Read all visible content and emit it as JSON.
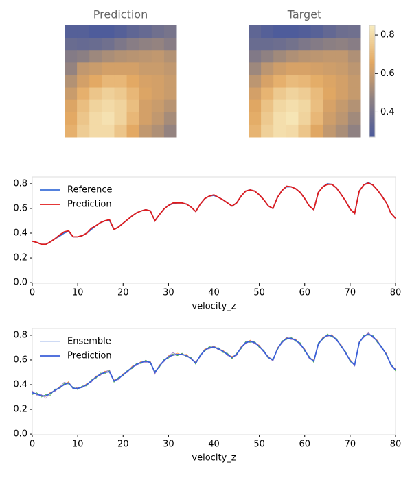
{
  "chart_data": [
    {
      "type": "heatmap",
      "title": "Prediction",
      "clim": [
        0.27,
        0.85
      ],
      "colormap": [
        "#4b5a9c",
        "#8c8083",
        "#e3a862",
        "#f8ecbf"
      ],
      "values": [
        [
          0.3,
          0.3,
          0.28,
          0.28,
          0.3,
          0.33,
          0.35,
          0.38,
          0.4
        ],
        [
          0.36,
          0.35,
          0.36,
          0.38,
          0.42,
          0.45,
          0.47,
          0.48,
          0.45
        ],
        [
          0.44,
          0.46,
          0.5,
          0.53,
          0.55,
          0.56,
          0.57,
          0.58,
          0.55
        ],
        [
          0.48,
          0.58,
          0.6,
          0.62,
          0.62,
          0.62,
          0.6,
          0.6,
          0.58
        ],
        [
          0.55,
          0.62,
          0.66,
          0.7,
          0.7,
          0.66,
          0.63,
          0.62,
          0.6
        ],
        [
          0.6,
          0.68,
          0.74,
          0.77,
          0.75,
          0.7,
          0.64,
          0.62,
          0.6
        ],
        [
          0.64,
          0.72,
          0.78,
          0.8,
          0.78,
          0.72,
          0.62,
          0.6,
          0.56
        ],
        [
          0.66,
          0.74,
          0.8,
          0.82,
          0.78,
          0.7,
          0.62,
          0.58,
          0.52
        ],
        [
          0.68,
          0.76,
          0.8,
          0.8,
          0.74,
          0.66,
          0.58,
          0.54,
          0.48
        ]
      ]
    },
    {
      "type": "heatmap",
      "title": "Target",
      "clim": [
        0.27,
        0.85
      ],
      "colormap": [
        "#4b5a9c",
        "#8c8083",
        "#e3a862",
        "#f8ecbf"
      ],
      "colorbar_ticks": [
        0.4,
        0.6,
        0.8
      ],
      "values": [
        [
          0.33,
          0.3,
          0.28,
          0.28,
          0.29,
          0.31,
          0.34,
          0.37,
          0.38
        ],
        [
          0.36,
          0.36,
          0.37,
          0.39,
          0.42,
          0.44,
          0.46,
          0.47,
          0.45
        ],
        [
          0.43,
          0.47,
          0.51,
          0.54,
          0.56,
          0.57,
          0.58,
          0.58,
          0.54
        ],
        [
          0.5,
          0.57,
          0.61,
          0.63,
          0.63,
          0.62,
          0.61,
          0.6,
          0.57
        ],
        [
          0.57,
          0.63,
          0.68,
          0.71,
          0.7,
          0.67,
          0.64,
          0.62,
          0.59
        ],
        [
          0.62,
          0.69,
          0.75,
          0.78,
          0.76,
          0.71,
          0.65,
          0.62,
          0.59
        ],
        [
          0.65,
          0.73,
          0.79,
          0.81,
          0.79,
          0.72,
          0.63,
          0.59,
          0.55
        ],
        [
          0.67,
          0.75,
          0.81,
          0.83,
          0.78,
          0.7,
          0.61,
          0.57,
          0.51
        ],
        [
          0.69,
          0.77,
          0.81,
          0.8,
          0.74,
          0.65,
          0.58,
          0.53,
          0.47
        ]
      ]
    },
    {
      "type": "line",
      "xlim": [
        0,
        80
      ],
      "ylim": [
        -0.005,
        0.855
      ],
      "xticks": [
        0,
        10,
        20,
        30,
        40,
        50,
        60,
        70,
        80
      ],
      "yticks": [
        {
          "value": 0,
          "label": "0.0"
        },
        0.2,
        0.4,
        0.6,
        0.8
      ],
      "legend": "upper left",
      "x": [
        0,
        1,
        2,
        3,
        4,
        5,
        6,
        7,
        8,
        9,
        10,
        11,
        12,
        13,
        14,
        15,
        16,
        17,
        18,
        19,
        20,
        21,
        22,
        23,
        24,
        25,
        26,
        27,
        28,
        29,
        30,
        31,
        32,
        33,
        34,
        35,
        36,
        37,
        38,
        39,
        40,
        41,
        42,
        43,
        44,
        45,
        46,
        47,
        48,
        49,
        50,
        51,
        52,
        53,
        54,
        55,
        56,
        57,
        58,
        59,
        60,
        61,
        62,
        63,
        64,
        65,
        66,
        67,
        68,
        69,
        70,
        71,
        72,
        73,
        74,
        75,
        76,
        77,
        78,
        79,
        80
      ],
      "series": [
        {
          "name": "Reference",
          "color": "#3b6fd8",
          "values": [
            0.335,
            0.325,
            0.31,
            0.31,
            0.33,
            0.355,
            0.375,
            0.4,
            0.415,
            0.37,
            0.37,
            0.38,
            0.4,
            0.43,
            0.46,
            0.485,
            0.5,
            0.505,
            0.43,
            0.45,
            0.48,
            0.51,
            0.54,
            0.565,
            0.58,
            0.59,
            0.58,
            0.5,
            0.55,
            0.595,
            0.625,
            0.64,
            0.645,
            0.645,
            0.635,
            0.61,
            0.575,
            0.635,
            0.68,
            0.7,
            0.705,
            0.69,
            0.67,
            0.645,
            0.62,
            0.645,
            0.7,
            0.74,
            0.75,
            0.74,
            0.71,
            0.67,
            0.62,
            0.6,
            0.69,
            0.745,
            0.775,
            0.775,
            0.76,
            0.73,
            0.68,
            0.62,
            0.59,
            0.73,
            0.775,
            0.8,
            0.795,
            0.765,
            0.715,
            0.66,
            0.595,
            0.56,
            0.74,
            0.79,
            0.81,
            0.79,
            0.75,
            0.7,
            0.645,
            0.56,
            0.52
          ]
        },
        {
          "name": "Prediction",
          "color": "#e01b1b",
          "values": [
            0.335,
            0.325,
            0.31,
            0.31,
            0.33,
            0.355,
            0.385,
            0.41,
            0.42,
            0.37,
            0.37,
            0.38,
            0.4,
            0.44,
            0.46,
            0.485,
            0.5,
            0.51,
            0.43,
            0.45,
            0.48,
            0.51,
            0.54,
            0.565,
            0.58,
            0.59,
            0.58,
            0.5,
            0.55,
            0.595,
            0.625,
            0.645,
            0.645,
            0.645,
            0.635,
            0.61,
            0.575,
            0.635,
            0.68,
            0.7,
            0.71,
            0.69,
            0.67,
            0.645,
            0.62,
            0.645,
            0.7,
            0.74,
            0.75,
            0.74,
            0.71,
            0.67,
            0.62,
            0.6,
            0.69,
            0.745,
            0.78,
            0.775,
            0.76,
            0.73,
            0.68,
            0.62,
            0.59,
            0.73,
            0.775,
            0.795,
            0.795,
            0.765,
            0.715,
            0.66,
            0.595,
            0.56,
            0.74,
            0.79,
            0.805,
            0.79,
            0.75,
            0.7,
            0.645,
            0.56,
            0.52
          ]
        }
      ],
      "xlabel": "velocity_z"
    },
    {
      "type": "line",
      "xlim": [
        0,
        80
      ],
      "ylim": [
        -0.005,
        0.855
      ],
      "xticks": [
        0,
        10,
        20,
        30,
        40,
        50,
        60,
        70,
        80
      ],
      "yticks": [
        {
          "value": 0,
          "label": "0.0"
        },
        0.2,
        0.4,
        0.6,
        0.8
      ],
      "legend": "upper left",
      "x": [
        0,
        1,
        2,
        3,
        4,
        5,
        6,
        7,
        8,
        9,
        10,
        11,
        12,
        13,
        14,
        15,
        16,
        17,
        18,
        19,
        20,
        21,
        22,
        23,
        24,
        25,
        26,
        27,
        28,
        29,
        30,
        31,
        32,
        33,
        34,
        35,
        36,
        37,
        38,
        39,
        40,
        41,
        42,
        43,
        44,
        45,
        46,
        47,
        48,
        49,
        50,
        51,
        52,
        53,
        54,
        55,
        56,
        57,
        58,
        59,
        60,
        61,
        62,
        63,
        64,
        65,
        66,
        67,
        68,
        69,
        70,
        71,
        72,
        73,
        74,
        75,
        76,
        77,
        78,
        79,
        80
      ],
      "series": [
        {
          "name": "Ensemble",
          "color": "#7b9be0",
          "member_colors": [
            "#ff7f0e",
            "#2ca02c",
            "#9467bd"
          ],
          "members": [
            [
              0.345,
              0.32,
              0.315,
              0.305,
              0.34,
              0.35,
              0.385,
              0.395,
              0.425,
              0.365,
              0.38,
              0.375,
              0.41,
              0.425,
              0.47,
              0.48,
              0.51,
              0.5,
              0.44,
              0.445,
              0.49,
              0.505,
              0.55,
              0.56,
              0.59,
              0.585,
              0.59,
              0.495,
              0.56,
              0.59,
              0.635,
              0.635,
              0.655,
              0.64,
              0.645,
              0.605,
              0.585,
              0.63,
              0.69,
              0.695,
              0.715,
              0.685,
              0.68,
              0.64,
              0.63,
              0.64,
              0.71,
              0.735,
              0.76,
              0.735,
              0.72,
              0.665,
              0.63,
              0.595,
              0.7,
              0.74,
              0.785,
              0.77,
              0.77,
              0.725,
              0.69,
              0.615,
              0.6,
              0.725,
              0.785,
              0.795,
              0.805,
              0.76,
              0.725,
              0.655,
              0.605,
              0.555,
              0.75,
              0.785,
              0.82,
              0.785,
              0.76,
              0.695,
              0.655,
              0.555,
              0.53
            ],
            [
              0.32,
              0.335,
              0.3,
              0.32,
              0.315,
              0.365,
              0.365,
              0.41,
              0.405,
              0.38,
              0.36,
              0.39,
              0.39,
              0.44,
              0.45,
              0.495,
              0.49,
              0.515,
              0.42,
              0.46,
              0.47,
              0.52,
              0.53,
              0.575,
              0.57,
              0.6,
              0.57,
              0.51,
              0.54,
              0.605,
              0.615,
              0.65,
              0.635,
              0.655,
              0.625,
              0.62,
              0.565,
              0.645,
              0.67,
              0.71,
              0.695,
              0.7,
              0.66,
              0.655,
              0.61,
              0.655,
              0.69,
              0.75,
              0.74,
              0.75,
              0.7,
              0.68,
              0.61,
              0.61,
              0.68,
              0.755,
              0.765,
              0.785,
              0.75,
              0.74,
              0.67,
              0.63,
              0.58,
              0.74,
              0.765,
              0.81,
              0.785,
              0.775,
              0.705,
              0.67,
              0.585,
              0.57,
              0.73,
              0.8,
              0.8,
              0.8,
              0.74,
              0.71,
              0.635,
              0.57,
              0.51
            ],
            [
              0.35,
              0.315,
              0.32,
              0.29,
              0.335,
              0.345,
              0.38,
              0.42,
              0.41,
              0.375,
              0.365,
              0.385,
              0.405,
              0.42,
              0.465,
              0.475,
              0.505,
              0.52,
              0.435,
              0.44,
              0.485,
              0.5,
              0.545,
              0.555,
              0.585,
              0.58,
              0.585,
              0.485,
              0.555,
              0.585,
              0.63,
              0.66,
              0.64,
              0.65,
              0.63,
              0.615,
              0.58,
              0.625,
              0.685,
              0.69,
              0.71,
              0.68,
              0.675,
              0.635,
              0.625,
              0.635,
              0.705,
              0.73,
              0.755,
              0.73,
              0.715,
              0.66,
              0.625,
              0.59,
              0.695,
              0.735,
              0.78,
              0.765,
              0.765,
              0.72,
              0.685,
              0.61,
              0.595,
              0.72,
              0.78,
              0.79,
              0.8,
              0.755,
              0.72,
              0.65,
              0.6,
              0.55,
              0.745,
              0.78,
              0.825,
              0.78,
              0.755,
              0.69,
              0.65,
              0.55,
              0.525
            ]
          ]
        },
        {
          "name": "Prediction",
          "color": "#3b5fd8",
          "values": [
            0.335,
            0.325,
            0.31,
            0.31,
            0.33,
            0.355,
            0.375,
            0.4,
            0.415,
            0.37,
            0.37,
            0.38,
            0.4,
            0.43,
            0.46,
            0.485,
            0.5,
            0.505,
            0.43,
            0.45,
            0.48,
            0.51,
            0.54,
            0.565,
            0.58,
            0.59,
            0.58,
            0.5,
            0.55,
            0.595,
            0.625,
            0.64,
            0.645,
            0.645,
            0.635,
            0.61,
            0.575,
            0.635,
            0.68,
            0.7,
            0.705,
            0.69,
            0.67,
            0.645,
            0.62,
            0.645,
            0.7,
            0.74,
            0.75,
            0.74,
            0.71,
            0.67,
            0.62,
            0.6,
            0.69,
            0.745,
            0.775,
            0.775,
            0.76,
            0.73,
            0.68,
            0.62,
            0.59,
            0.73,
            0.775,
            0.8,
            0.795,
            0.765,
            0.715,
            0.66,
            0.595,
            0.56,
            0.74,
            0.79,
            0.81,
            0.79,
            0.75,
            0.7,
            0.645,
            0.56,
            0.52
          ]
        }
      ],
      "xlabel": "velocity_z"
    }
  ]
}
